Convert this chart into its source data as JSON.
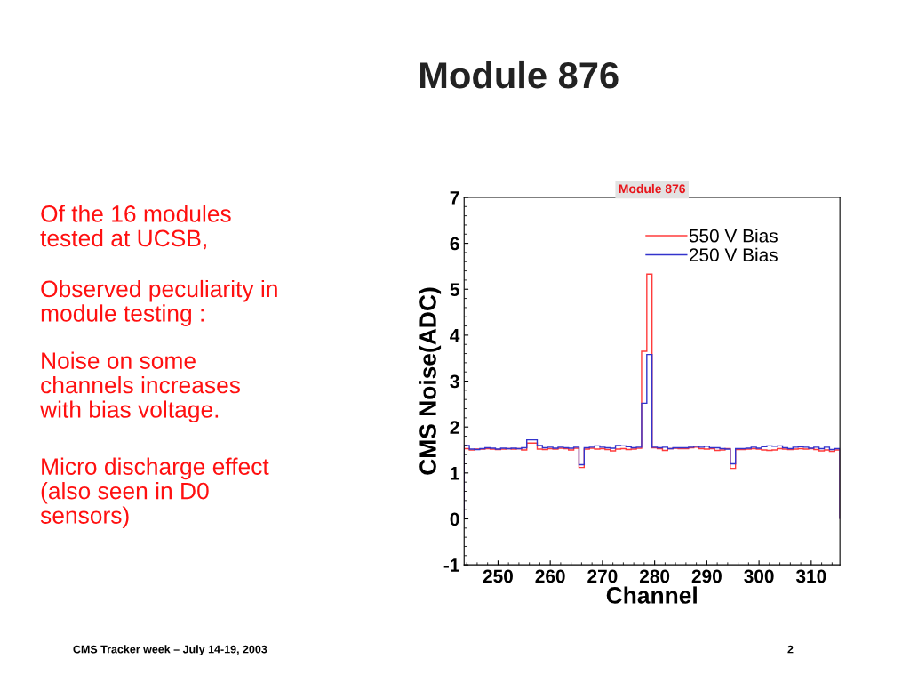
{
  "chart_data": {
    "type": "histogram",
    "title": "Module 876",
    "subtitle": "Module 876",
    "xlabel": "Channel",
    "ylabel": "CMS Noise(ADC)",
    "bins": [
      243.5,
      244.5,
      245.5,
      246.5,
      247.5,
      248.5,
      249.5,
      250.5,
      251.5,
      252.5,
      253.5,
      254.5,
      255.5,
      256.5,
      257.5,
      258.5,
      259.5,
      260.5,
      261.5,
      262.5,
      263.5,
      264.5,
      265.5,
      266.5,
      267.5,
      268.5,
      269.5,
      270.5,
      271.5,
      272.5,
      273.5,
      274.5,
      275.5,
      276.5,
      277.5,
      278.5,
      279.5,
      280.5,
      281.5,
      282.5,
      283.5,
      284.5,
      285.5,
      286.5,
      287.5,
      288.5,
      289.5,
      290.5,
      291.5,
      292.5,
      293.5,
      294.5,
      295.5,
      296.5,
      297.5,
      298.5,
      299.5,
      300.5,
      301.5,
      302.5,
      303.5,
      304.5,
      305.5,
      306.5,
      307.5,
      308.5,
      309.5,
      310.5,
      311.5,
      312.5,
      313.5,
      314.5,
      315.5
    ],
    "series": [
      {
        "name": "550 V Bias",
        "color": "#ff3b3b",
        "values": [
          1.53,
          1.5,
          1.52,
          1.52,
          1.53,
          1.52,
          1.51,
          1.52,
          1.53,
          1.52,
          1.53,
          1.5,
          1.65,
          1.65,
          1.52,
          1.51,
          1.53,
          1.52,
          1.54,
          1.53,
          1.5,
          1.54,
          1.12,
          1.52,
          1.54,
          1.52,
          1.53,
          1.51,
          1.48,
          1.52,
          1.53,
          1.51,
          1.52,
          1.54,
          3.65,
          5.33,
          1.55,
          1.53,
          1.49,
          1.53,
          1.54,
          1.53,
          1.53,
          1.55,
          1.56,
          1.53,
          1.52,
          1.53,
          1.49,
          1.5,
          1.53,
          1.1,
          1.51,
          1.51,
          1.52,
          1.53,
          1.52,
          1.5,
          1.49,
          1.5,
          1.53,
          1.52,
          1.51,
          1.52,
          1.53,
          1.52,
          1.53,
          1.51,
          1.48,
          1.5,
          1.47,
          1.5
        ]
      },
      {
        "name": "250 V Bias",
        "color": "#3333cc",
        "values": [
          1.6,
          1.52,
          1.51,
          1.53,
          1.55,
          1.54,
          1.52,
          1.54,
          1.53,
          1.54,
          1.53,
          1.55,
          1.72,
          1.72,
          1.6,
          1.55,
          1.56,
          1.54,
          1.56,
          1.55,
          1.54,
          1.56,
          1.18,
          1.55,
          1.56,
          1.59,
          1.56,
          1.55,
          1.54,
          1.6,
          1.59,
          1.57,
          1.55,
          1.56,
          2.52,
          3.58,
          1.56,
          1.55,
          1.56,
          1.53,
          1.55,
          1.55,
          1.55,
          1.56,
          1.58,
          1.56,
          1.58,
          1.55,
          1.55,
          1.53,
          1.52,
          1.2,
          1.53,
          1.53,
          1.54,
          1.56,
          1.54,
          1.57,
          1.59,
          1.58,
          1.59,
          1.55,
          1.53,
          1.56,
          1.57,
          1.56,
          1.54,
          1.56,
          1.53,
          1.56,
          1.51,
          1.53
        ]
      }
    ],
    "xlim": [
      243.5,
      315.5
    ],
    "ylim": [
      -1,
      7
    ],
    "xticks": [
      250,
      260,
      270,
      280,
      290,
      300,
      310
    ],
    "yticks": [
      -1,
      0,
      1,
      2,
      3,
      4,
      5,
      6,
      7
    ],
    "grid": false,
    "legend": "top right",
    "annotations": [
      "Of the 16 modules\ntested at UCSB,",
      "Observed peculiarity in\nmodule testing :",
      "Noise on some\nchannels increases\nwith bias voltage.",
      "Micro discharge effect\n(also seen in D0\nsensors)",
      "CMS Tracker week – July 14-19, 2003",
      "2"
    ]
  }
}
